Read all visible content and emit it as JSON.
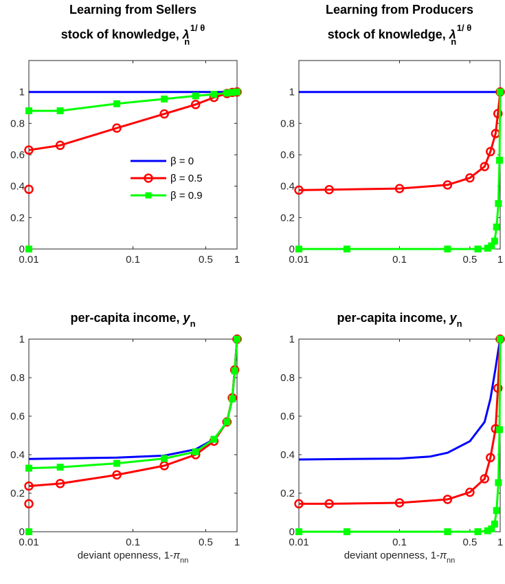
{
  "chart_data": [
    {
      "type": "line",
      "title_line1": "Learning from Sellers",
      "title_line2_text": "stock of knowledge, ",
      "title_symbol": "λ",
      "title_superscript": "1/ θ",
      "title_subscript": "n",
      "x_scale": "log",
      "xlim": [
        0.01,
        1
      ],
      "ylim": [
        0,
        1.2
      ],
      "x_ticks": [
        "0.01",
        "0.1",
        "0.5",
        "1"
      ],
      "y_ticks": [
        "0",
        "0.2",
        "0.4",
        "0.6",
        "0.8",
        "1"
      ],
      "xlabel": "",
      "legend": {
        "placement": "center-right"
      },
      "series": [
        {
          "name": "β = 0",
          "color": "#0000ff",
          "marker": "none",
          "x": [
            0.01,
            1
          ],
          "y": [
            1.0,
            1.0
          ]
        },
        {
          "name": "β = 0.5",
          "color": "#ff0000",
          "marker": "circle",
          "x": [
            0.01,
            0.01,
            0.02,
            0.07,
            0.2,
            0.4,
            0.6,
            0.8,
            0.9,
            1.0
          ],
          "y": [
            0.38,
            0.63,
            0.66,
            0.77,
            0.86,
            0.92,
            0.965,
            0.99,
            0.997,
            1.0
          ],
          "line_starts_at": 1
        },
        {
          "name": "β = 0.9",
          "color": "#00ff00",
          "marker": "square",
          "x": [
            0.01,
            0.01,
            0.02,
            0.07,
            0.2,
            0.4,
            0.6,
            0.8,
            0.9,
            1.0
          ],
          "y": [
            0.0,
            0.88,
            0.88,
            0.925,
            0.955,
            0.975,
            0.985,
            0.993,
            0.997,
            1.0
          ],
          "line_starts_at": 1
        }
      ]
    },
    {
      "type": "line",
      "title_line1": "Learning from Producers",
      "title_line2_text": "stock of knowledge, ",
      "title_symbol": "λ",
      "title_superscript": "1/ θ",
      "title_subscript": "n",
      "x_scale": "log",
      "xlim": [
        0.01,
        1
      ],
      "ylim": [
        0,
        1.2
      ],
      "x_ticks": [
        "0.01",
        "0.1",
        "0.5",
        "1"
      ],
      "y_ticks": [
        "0",
        "0.2",
        "0.4",
        "0.6",
        "0.8",
        "1"
      ],
      "xlabel": "",
      "series": [
        {
          "name": "β = 0",
          "color": "#0000ff",
          "marker": "none",
          "x": [
            0.01,
            1
          ],
          "y": [
            1.0,
            1.0
          ]
        },
        {
          "name": "β = 0.5",
          "color": "#ff0000",
          "marker": "circle",
          "x": [
            0.01,
            0.02,
            0.1,
            0.3,
            0.5,
            0.7,
            0.8,
            0.9,
            0.95,
            1.0
          ],
          "y": [
            0.375,
            0.378,
            0.385,
            0.408,
            0.453,
            0.525,
            0.62,
            0.735,
            0.862,
            1.0
          ]
        },
        {
          "name": "β = 0.9",
          "color": "#00ff00",
          "marker": "square",
          "x": [
            0.01,
            0.03,
            0.3,
            0.6,
            0.75,
            0.82,
            0.88,
            0.92,
            0.96,
            0.985,
            1.0
          ],
          "y": [
            0.0,
            0.0,
            0.0,
            0.0,
            0.005,
            0.02,
            0.05,
            0.14,
            0.29,
            0.565,
            1.0
          ]
        }
      ]
    },
    {
      "type": "line",
      "title_line1": "",
      "title_line2_text": "per-capita income, ",
      "title_symbol": "y",
      "title_superscript": "",
      "title_subscript": "n",
      "x_scale": "log",
      "xlim": [
        0.01,
        1
      ],
      "ylim": [
        0,
        1
      ],
      "x_ticks": [
        "0.01",
        "0.1",
        "0.5",
        "1"
      ],
      "y_ticks": [
        "0",
        "0.2",
        "0.4",
        "0.6",
        "0.8",
        "1"
      ],
      "xlabel": "deviant openness, 1-",
      "xlabel_symbol": "π",
      "xlabel_subscript": "nn",
      "series": [
        {
          "name": "β = 0",
          "color": "#0000ff",
          "marker": "none",
          "x": [
            0.01,
            0.07,
            0.2,
            0.4,
            0.6,
            0.8,
            0.9,
            0.95,
            1.0
          ],
          "y": [
            0.378,
            0.385,
            0.395,
            0.428,
            0.48,
            0.57,
            0.69,
            0.84,
            1.0
          ]
        },
        {
          "name": "β = 0.5",
          "color": "#ff0000",
          "marker": "circle",
          "x": [
            0.01,
            0.01,
            0.02,
            0.07,
            0.2,
            0.4,
            0.6,
            0.8,
            0.9,
            0.95,
            1.0
          ],
          "y": [
            0.145,
            0.237,
            0.25,
            0.295,
            0.343,
            0.4,
            0.47,
            0.57,
            0.695,
            0.84,
            1.0
          ],
          "line_starts_at": 1
        },
        {
          "name": "β = 0.9",
          "color": "#00ff00",
          "marker": "square",
          "x": [
            0.01,
            0.01,
            0.02,
            0.07,
            0.2,
            0.4,
            0.6,
            0.8,
            0.9,
            0.95,
            1.0
          ],
          "y": [
            0.0,
            0.33,
            0.335,
            0.355,
            0.38,
            0.415,
            0.48,
            0.57,
            0.69,
            0.835,
            1.0
          ],
          "line_starts_at": 1
        }
      ]
    },
    {
      "type": "line",
      "title_line1": "",
      "title_line2_text": "per-capita income, ",
      "title_symbol": "y",
      "title_superscript": "",
      "title_subscript": "n",
      "x_scale": "log",
      "xlim": [
        0.01,
        1
      ],
      "ylim": [
        0,
        1
      ],
      "x_ticks": [
        "0.01",
        "0.1",
        "0.5",
        "1"
      ],
      "y_ticks": [
        "0",
        "0.2",
        "0.4",
        "0.6",
        "0.8",
        "1"
      ],
      "xlabel": "deviant openness, 1-",
      "xlabel_symbol": "π",
      "xlabel_subscript": "nn",
      "series": [
        {
          "name": "β = 0",
          "color": "#0000ff",
          "marker": "none",
          "x": [
            0.01,
            0.1,
            0.2,
            0.3,
            0.5,
            0.7,
            0.8,
            0.9,
            0.95,
            1.0
          ],
          "y": [
            0.375,
            0.38,
            0.39,
            0.41,
            0.47,
            0.57,
            0.69,
            0.85,
            0.93,
            1.0
          ]
        },
        {
          "name": "β = 0.5",
          "color": "#ff0000",
          "marker": "circle",
          "x": [
            0.01,
            0.02,
            0.1,
            0.3,
            0.5,
            0.7,
            0.8,
            0.9,
            0.95,
            1.0
          ],
          "y": [
            0.145,
            0.145,
            0.15,
            0.168,
            0.205,
            0.275,
            0.385,
            0.535,
            0.745,
            1.0
          ]
        },
        {
          "name": "β = 0.9",
          "color": "#00ff00",
          "marker": "square",
          "x": [
            0.01,
            0.03,
            0.3,
            0.6,
            0.75,
            0.82,
            0.88,
            0.92,
            0.96,
            0.985,
            1.0
          ],
          "y": [
            0.0,
            0.0,
            0.0,
            0.0,
            0.005,
            0.015,
            0.04,
            0.11,
            0.255,
            0.53,
            1.0
          ]
        }
      ]
    }
  ]
}
